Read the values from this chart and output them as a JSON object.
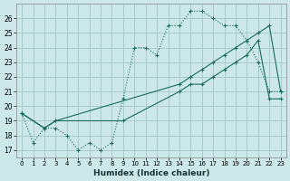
{
  "xlabel": "Humidex (Indice chaleur)",
  "bg_color": "#cce8e8",
  "grid_color": "#aacccc",
  "line_color": "#1a6b5a",
  "xlim": [
    -0.5,
    23.5
  ],
  "ylim": [
    16.5,
    27.0
  ],
  "yticks": [
    17,
    18,
    19,
    20,
    21,
    22,
    23,
    24,
    25,
    26
  ],
  "xticks": [
    0,
    1,
    2,
    3,
    4,
    5,
    6,
    7,
    8,
    9,
    10,
    11,
    12,
    13,
    14,
    15,
    16,
    17,
    18,
    19,
    20,
    21,
    22,
    23
  ],
  "series1_x": [
    0,
    1,
    2,
    3,
    4,
    5,
    6,
    7,
    8,
    9,
    10,
    11,
    12,
    13,
    14,
    15,
    16,
    17,
    18,
    19,
    20,
    21,
    22,
    23
  ],
  "series1_y": [
    19.5,
    17.5,
    18.5,
    18.5,
    18.0,
    17.0,
    17.5,
    17.0,
    17.5,
    20.5,
    24.0,
    24.0,
    23.5,
    25.5,
    25.5,
    26.5,
    26.5,
    26.0,
    25.5,
    25.5,
    24.5,
    23.0,
    21.0,
    21.0
  ],
  "series2_x": [
    0,
    2,
    3,
    9,
    14,
    15,
    16,
    17,
    18,
    19,
    20,
    21,
    22,
    23
  ],
  "series2_y": [
    19.5,
    18.5,
    19.0,
    19.0,
    21.0,
    21.5,
    21.5,
    22.0,
    22.5,
    23.0,
    23.5,
    24.5,
    20.5,
    20.5
  ],
  "series3_x": [
    0,
    2,
    3,
    14,
    15,
    16,
    17,
    18,
    19,
    20,
    21,
    22,
    23
  ],
  "series3_y": [
    19.5,
    18.5,
    19.0,
    21.5,
    22.0,
    22.5,
    23.0,
    23.5,
    24.0,
    24.5,
    25.0,
    25.5,
    21.0
  ]
}
